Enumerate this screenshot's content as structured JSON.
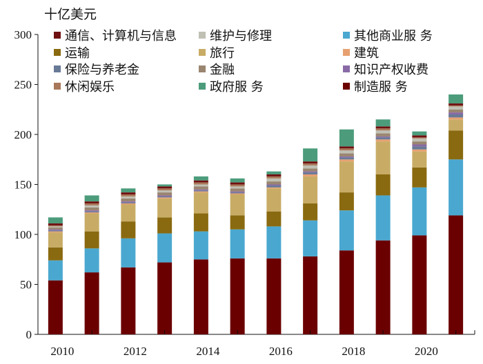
{
  "chart_data": {
    "type": "bar",
    "stacked": true,
    "title": "",
    "ylabel": "十亿美元",
    "xlabel": "",
    "ylim": [
      0,
      300
    ],
    "yticks": [
      0,
      50,
      100,
      150,
      200,
      250,
      300
    ],
    "x_tick_labels": [
      "2010",
      "2012",
      "2014",
      "2016",
      "2018",
      "2020"
    ],
    "categories": [
      "2010",
      "2011",
      "2012",
      "2013",
      "2014",
      "2015",
      "2016",
      "2017",
      "2018",
      "2019",
      "2020",
      "2021"
    ],
    "legend_position": "top",
    "series": [
      {
        "name": "制造服 务",
        "color": "#6b0000",
        "values": [
          54,
          62,
          67,
          72,
          75,
          76,
          76,
          78,
          84,
          94,
          99,
          119
        ]
      },
      {
        "name": "其他商业服 务",
        "color": "#4aa8d0",
        "values": [
          20,
          24,
          29,
          29,
          28,
          29,
          32,
          36,
          40,
          45,
          48,
          56
        ]
      },
      {
        "name": "运输",
        "color": "#8a6a10",
        "values": [
          13,
          17,
          17,
          16,
          18,
          14,
          15,
          17,
          18,
          21,
          20,
          29
        ]
      },
      {
        "name": "旅行",
        "color": "#c8ac66",
        "values": [
          15,
          18,
          17,
          19,
          21,
          21,
          23,
          27,
          31,
          33,
          16,
          11
        ]
      },
      {
        "name": "建筑",
        "color": "#e8a070",
        "values": [
          1,
          1,
          1,
          1,
          1,
          1,
          1,
          2,
          2,
          2,
          2,
          2
        ]
      },
      {
        "name": "保险与养老金",
        "color": "#687a96",
        "values": [
          1,
          1,
          1,
          1,
          1,
          1,
          2,
          2,
          2,
          2,
          3,
          3
        ]
      },
      {
        "name": "知识产权收费",
        "color": "#8a6aa6",
        "values": [
          1,
          1,
          1,
          1,
          1,
          1,
          1,
          1,
          1,
          1,
          2,
          2
        ]
      },
      {
        "name": "金融",
        "color": "#9a8570",
        "values": [
          2,
          3,
          3,
          3,
          3,
          3,
          3,
          3,
          3,
          3,
          3,
          3
        ]
      },
      {
        "name": "维护与修理",
        "color": "#c0c0b4",
        "values": [
          1,
          2,
          2,
          2,
          2,
          2,
          3,
          3,
          3,
          3,
          3,
          3
        ]
      },
      {
        "name": "休闲娱乐",
        "color": "#a8785a",
        "values": [
          1,
          2,
          2,
          2,
          2,
          2,
          2,
          2,
          2,
          2,
          1,
          1
        ]
      },
      {
        "name": "通信、计算机与信息",
        "color": "#701010",
        "values": [
          2,
          2,
          2,
          2,
          2,
          2,
          2,
          2,
          2,
          2,
          2,
          2
        ]
      },
      {
        "name": "政府服 务",
        "color": "#4c9c7c",
        "values": [
          6,
          6,
          4,
          2,
          4,
          4,
          3,
          13,
          17,
          7,
          4,
          9
        ]
      }
    ],
    "legend": [
      [
        "通信、计算机与信息",
        "维护与修理",
        "其他商业服 务"
      ],
      [
        "运输",
        "旅行",
        "建筑"
      ],
      [
        "保险与养老金",
        "金融",
        "知识产权收费"
      ],
      [
        "休闲娱乐",
        "政府服 务",
        "制造服 务"
      ]
    ]
  }
}
